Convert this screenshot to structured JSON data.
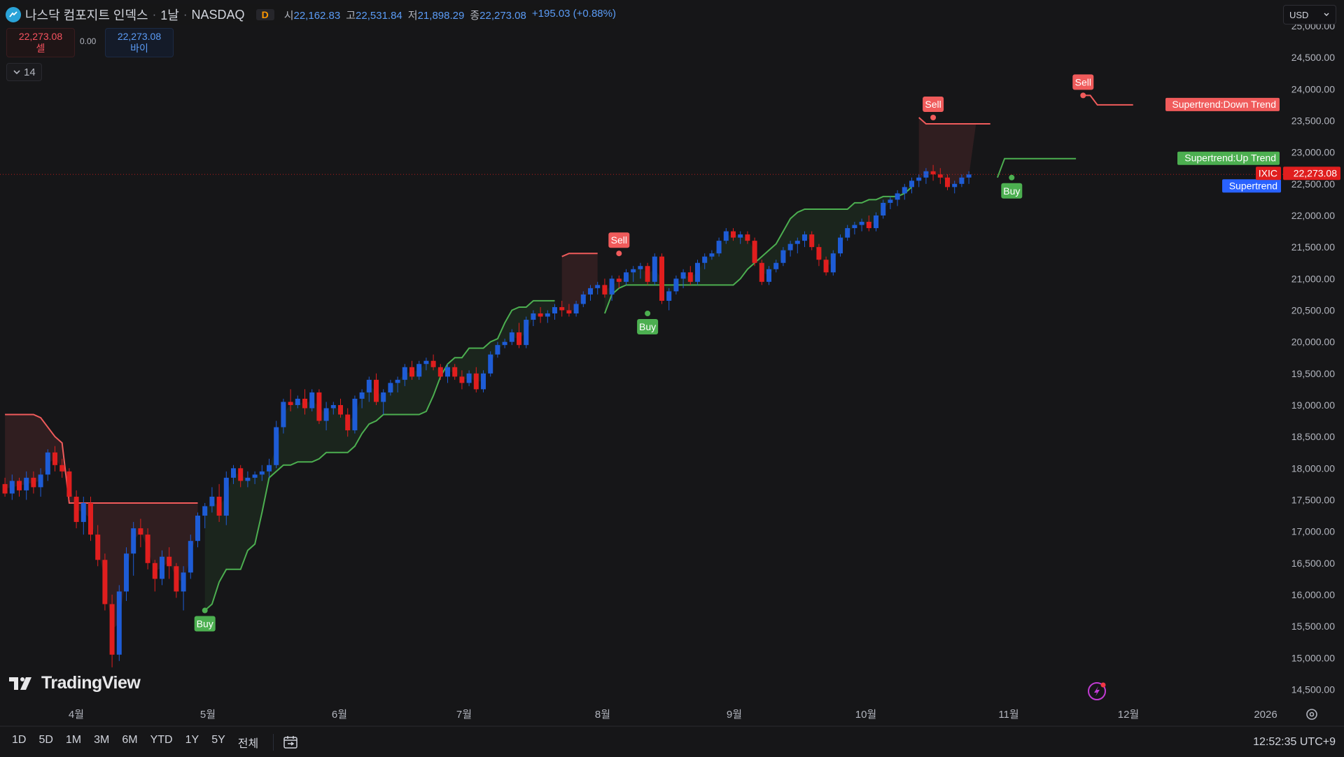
{
  "symbol": {
    "name": "나스닥 컴포지트 인덱스",
    "interval": "1날",
    "exchange": "NASDAQ",
    "interval_badge": "D",
    "open_label": "시",
    "open": "22,162.83",
    "high_label": "고",
    "high": "22,531.84",
    "low_label": "저",
    "low": "21,898.29",
    "close_label": "종",
    "close": "22,273.08",
    "change": "+195.03 (+0.88%)"
  },
  "trade": {
    "sell_price": "22,273.08",
    "sell_label": "셀",
    "spread": "0.00",
    "buy_price": "22,273.08",
    "buy_label": "바이"
  },
  "indicator_toggle": {
    "count": "14"
  },
  "currency": "USD",
  "branding": "TradingView",
  "bottom_bar": {
    "ranges": [
      "1D",
      "5D",
      "1M",
      "3M",
      "6M",
      "YTD",
      "1Y",
      "5Y",
      "전체"
    ],
    "clock": "12:52:35 UTC+9"
  },
  "colors": {
    "background": "#161618",
    "up": "#1e5cd6",
    "down": "#e01e1e",
    "supertrend_up": "#4caf50",
    "supertrend_down": "#f05b5b",
    "last_price": "#e01e1e",
    "supertrend_label": "#2962ff"
  },
  "icons": {
    "symbol_logo": "nasdaq-logo-icon",
    "collapse": "chevron-down-icon",
    "date_range": "date-range-icon",
    "settings": "gear-icon",
    "replay": "lightning-icon"
  },
  "chart_data": {
    "type": "candlestick",
    "title": "나스닥 컴포지트 인덱스 · 1날 · NASDAQ",
    "ylim": [
      14250,
      25100
    ],
    "y_ticks": [
      "14,500.00",
      "15,000.00",
      "15,500.00",
      "16,000.00",
      "16,500.00",
      "17,000.00",
      "17,500.00",
      "18,000.00",
      "18,500.00",
      "19,000.00",
      "19,500.00",
      "20,000.00",
      "20,500.00",
      "21,000.00",
      "21,500.00",
      "22,000.00",
      "22,500.00",
      "23,000.00",
      "23,500.00",
      "24,000.00",
      "24,500.00",
      "25,000.00"
    ],
    "x_ticks": [
      "4월",
      "5월",
      "6월",
      "7월",
      "8월",
      "9월",
      "10월",
      "11월",
      "12월",
      "2026"
    ],
    "last_price": {
      "symbol": "IXIC",
      "value": "22,273.08"
    },
    "labels": {
      "supertrend": "Supertrend",
      "down_trend": "Supertrend:Down Trend",
      "up_trend": "Supertrend:Up Trend",
      "buy": "Buy",
      "sell": "Sell"
    },
    "supertrend_segments": [
      {
        "direction": "down",
        "levels": [
          18850,
          18850,
          18850,
          18850,
          18850,
          18800,
          18650,
          18500,
          18400,
          17450,
          17450,
          17450,
          17450,
          17450,
          17450,
          17450,
          17450,
          17450,
          17450,
          17450,
          17450,
          17450,
          17450,
          17450,
          17450,
          17450,
          17450,
          17450
        ]
      },
      {
        "direction": "up",
        "levels": [
          15750,
          15850,
          16200,
          16400,
          16400,
          16400,
          16700,
          16800,
          17300,
          17850,
          17950,
          18050,
          18050,
          18100,
          18100,
          18100,
          18150,
          18250,
          18250,
          18250,
          18250,
          18350,
          18550,
          18700,
          18750,
          18850,
          18850,
          18850,
          18850,
          18850,
          18850,
          18900,
          19150,
          19450,
          19650,
          19750,
          19750,
          19900,
          19900,
          19900,
          20000,
          20050,
          20300,
          20500,
          20550,
          20550,
          20650,
          20650,
          20650,
          20650
        ]
      },
      {
        "direction": "down",
        "levels": [
          21350,
          21400,
          21400,
          21400,
          21400,
          21400
        ]
      },
      {
        "direction": "up",
        "levels": [
          20450,
          20750,
          20850,
          20900,
          20900,
          20900,
          20900,
          20900,
          20900,
          20900,
          20900,
          20900,
          20900,
          20900,
          20900,
          20900,
          20900,
          20900,
          20900,
          21000,
          21150,
          21250,
          21350,
          21450,
          21550,
          21750,
          21950,
          22050,
          22100,
          22100,
          22100,
          22100,
          22100,
          22100,
          22100,
          22200,
          22200,
          22250,
          22250,
          22300,
          22300,
          22300,
          22350,
          22450
        ]
      },
      {
        "direction": "down",
        "levels": [
          23550,
          23450,
          23450,
          23450,
          23450,
          23450,
          23450,
          23450,
          23450,
          23450,
          23450
        ]
      },
      {
        "direction": "up",
        "levels": [
          22600,
          22900,
          22900,
          22900,
          22900,
          22900,
          22900,
          22900,
          22900,
          22900,
          22900,
          22900
        ]
      },
      {
        "direction": "down",
        "levels": [
          23900,
          23900,
          23750,
          23750,
          23750,
          23750,
          23750,
          23750
        ]
      }
    ],
    "signals": [
      {
        "type": "Buy",
        "bar": 28,
        "value": 15750
      },
      {
        "type": "Sell",
        "bar": 86,
        "value": 21400
      },
      {
        "type": "Buy",
        "bar": 90,
        "value": 20450
      },
      {
        "type": "Sell",
        "bar": 130,
        "value": 23550
      },
      {
        "type": "Buy",
        "bar": 141,
        "value": 22600
      },
      {
        "type": "Sell",
        "bar": 151,
        "value": 23900
      }
    ],
    "candles": [
      [
        17750,
        17850,
        17550,
        17600
      ],
      [
        17600,
        17900,
        17500,
        17800
      ],
      [
        17800,
        17850,
        17550,
        17650
      ],
      [
        17650,
        17950,
        17500,
        17850
      ],
      [
        17850,
        17950,
        17600,
        17700
      ],
      [
        17700,
        18000,
        17550,
        17900
      ],
      [
        17900,
        18300,
        17800,
        18250
      ],
      [
        18250,
        18350,
        17950,
        18050
      ],
      [
        18050,
        18150,
        17850,
        17950
      ],
      [
        17950,
        18000,
        17500,
        17550
      ],
      [
        17550,
        17650,
        17050,
        17150
      ],
      [
        17150,
        17550,
        16950,
        17450
      ],
      [
        17450,
        17550,
        16850,
        16950
      ],
      [
        16950,
        17100,
        16450,
        16550
      ],
      [
        16550,
        16650,
        15750,
        15850
      ],
      [
        15850,
        16000,
        14850,
        15050
      ],
      [
        15050,
        16150,
        14950,
        16050
      ],
      [
        16050,
        16750,
        15900,
        16650
      ],
      [
        16650,
        17150,
        16300,
        17050
      ],
      [
        17050,
        17200,
        16750,
        16950
      ],
      [
        16950,
        17050,
        16400,
        16500
      ],
      [
        16500,
        16550,
        16050,
        16250
      ],
      [
        16250,
        16700,
        16150,
        16600
      ],
      [
        16600,
        16750,
        16250,
        16450
      ],
      [
        16450,
        16500,
        15950,
        16050
      ],
      [
        16050,
        16450,
        15750,
        16350
      ],
      [
        16350,
        16950,
        16250,
        16850
      ],
      [
        16850,
        17300,
        16750,
        17250
      ],
      [
        17250,
        17450,
        17050,
        17400
      ],
      [
        17400,
        17700,
        17300,
        17550
      ],
      [
        17550,
        17750,
        17150,
        17250
      ],
      [
        17250,
        17950,
        17100,
        17850
      ],
      [
        17850,
        18050,
        17750,
        18000
      ],
      [
        18000,
        18050,
        17700,
        17800
      ],
      [
        17800,
        17950,
        17700,
        17850
      ],
      [
        17850,
        17950,
        17750,
        17900
      ],
      [
        17900,
        18050,
        17800,
        17950
      ],
      [
        17950,
        18150,
        17850,
        18050
      ],
      [
        18050,
        18750,
        18000,
        18650
      ],
      [
        18650,
        19100,
        18550,
        19050
      ],
      [
        19050,
        19250,
        18900,
        19000
      ],
      [
        19000,
        19150,
        18950,
        19100
      ],
      [
        19100,
        19250,
        18850,
        18950
      ],
      [
        18950,
        19250,
        18900,
        19200
      ],
      [
        19200,
        19250,
        18700,
        18750
      ],
      [
        18750,
        19050,
        18600,
        18950
      ],
      [
        18950,
        19050,
        18850,
        19000
      ],
      [
        19000,
        19100,
        18800,
        18850
      ],
      [
        18850,
        18950,
        18500,
        18600
      ],
      [
        18600,
        19150,
        18550,
        19100
      ],
      [
        19100,
        19250,
        18950,
        19200
      ],
      [
        19200,
        19450,
        19050,
        19400
      ],
      [
        19400,
        19500,
        19000,
        19050
      ],
      [
        19050,
        19250,
        18850,
        19200
      ],
      [
        19200,
        19400,
        19150,
        19350
      ],
      [
        19350,
        19450,
        19200,
        19400
      ],
      [
        19400,
        19650,
        19300,
        19600
      ],
      [
        19600,
        19700,
        19400,
        19450
      ],
      [
        19450,
        19700,
        19400,
        19650
      ],
      [
        19650,
        19750,
        19550,
        19700
      ],
      [
        19700,
        19800,
        19550,
        19600
      ],
      [
        19600,
        19650,
        19400,
        19450
      ],
      [
        19450,
        19650,
        19350,
        19600
      ],
      [
        19600,
        19650,
        19400,
        19450
      ],
      [
        19450,
        19550,
        19250,
        19350
      ],
      [
        19350,
        19550,
        19300,
        19500
      ],
      [
        19500,
        19600,
        19200,
        19250
      ],
      [
        19250,
        19550,
        19200,
        19500
      ],
      [
        19500,
        19850,
        19450,
        19800
      ],
      [
        19800,
        20000,
        19750,
        19950
      ],
      [
        19950,
        20050,
        19900,
        20000
      ],
      [
        20000,
        20200,
        19950,
        20150
      ],
      [
        20150,
        20300,
        19900,
        19950
      ],
      [
        19950,
        20400,
        19900,
        20350
      ],
      [
        20350,
        20500,
        20250,
        20450
      ],
      [
        20450,
        20550,
        20300,
        20400
      ],
      [
        20400,
        20500,
        20300,
        20450
      ],
      [
        20450,
        20600,
        20350,
        20550
      ],
      [
        20550,
        20650,
        20400,
        20500
      ],
      [
        20500,
        20600,
        20400,
        20450
      ],
      [
        20450,
        20650,
        20400,
        20600
      ],
      [
        20600,
        20800,
        20550,
        20750
      ],
      [
        20750,
        20900,
        20650,
        20850
      ],
      [
        20850,
        20950,
        20750,
        20900
      ],
      [
        20900,
        21000,
        20700,
        20750
      ],
      [
        20750,
        21050,
        20650,
        21000
      ],
      [
        21000,
        21050,
        20850,
        20950
      ],
      [
        20950,
        21150,
        20900,
        21100
      ],
      [
        21100,
        21200,
        20950,
        21150
      ],
      [
        21150,
        21250,
        21000,
        21200
      ],
      [
        21200,
        21250,
        20900,
        20950
      ],
      [
        20950,
        21400,
        20900,
        21350
      ],
      [
        21350,
        21400,
        20600,
        20650
      ],
      [
        20650,
        20850,
        20500,
        20800
      ],
      [
        20800,
        21050,
        20750,
        21000
      ],
      [
        21000,
        21150,
        20850,
        21100
      ],
      [
        21100,
        21200,
        20900,
        20950
      ],
      [
        20950,
        21300,
        20900,
        21250
      ],
      [
        21250,
        21400,
        21150,
        21350
      ],
      [
        21350,
        21450,
        21300,
        21400
      ],
      [
        21400,
        21650,
        21350,
        21600
      ],
      [
        21600,
        21800,
        21550,
        21750
      ],
      [
        21750,
        21800,
        21600,
        21650
      ],
      [
        21650,
        21750,
        21550,
        21700
      ],
      [
        21700,
        21750,
        21550,
        21600
      ],
      [
        21600,
        21650,
        21200,
        21250
      ],
      [
        21250,
        21300,
        20900,
        20950
      ],
      [
        20950,
        21200,
        20900,
        21150
      ],
      [
        21150,
        21300,
        21100,
        21250
      ],
      [
        21250,
        21500,
        21200,
        21450
      ],
      [
        21450,
        21600,
        21350,
        21550
      ],
      [
        21550,
        21650,
        21400,
        21600
      ],
      [
        21600,
        21750,
        21500,
        21700
      ],
      [
        21700,
        21750,
        21450,
        21500
      ],
      [
        21500,
        21550,
        21200,
        21300
      ],
      [
        21300,
        21350,
        21050,
        21100
      ],
      [
        21100,
        21450,
        21050,
        21400
      ],
      [
        21400,
        21700,
        21350,
        21650
      ],
      [
        21650,
        21850,
        21600,
        21800
      ],
      [
        21800,
        21900,
        21700,
        21850
      ],
      [
        21850,
        21950,
        21750,
        21900
      ],
      [
        21900,
        22000,
        21750,
        21800
      ],
      [
        21800,
        22050,
        21750,
        22000
      ],
      [
        22000,
        22250,
        21950,
        22200
      ],
      [
        22200,
        22300,
        22100,
        22250
      ],
      [
        22250,
        22400,
        22150,
        22350
      ],
      [
        22350,
        22500,
        22250,
        22450
      ],
      [
        22450,
        22600,
        22350,
        22550
      ],
      [
        22550,
        22650,
        22450,
        22600
      ],
      [
        22600,
        22750,
        22500,
        22700
      ],
      [
        22700,
        22800,
        22550,
        22650
      ],
      [
        22650,
        22750,
        22500,
        22600
      ],
      [
        22600,
        22650,
        22400,
        22450
      ],
      [
        22450,
        22550,
        22350,
        22500
      ],
      [
        22500,
        22650,
        22450,
        22600
      ],
      [
        22600,
        22700,
        22500,
        22650
      ]
    ]
  }
}
